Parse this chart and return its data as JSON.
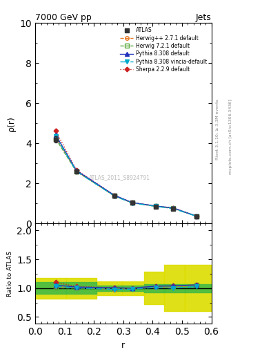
{
  "title_left": "7000 GeV pp",
  "title_right": "Jets",
  "ylabel_main": "ρ(r)",
  "ylabel_ratio": "Ratio to ATLAS",
  "xlabel": "r",
  "right_label_top": "Rivet 3.1.10; ≥ 3.3M events",
  "right_label_bottom": "mcplots.cern.ch [arXiv:1306.3436]",
  "watermark": "ATLAS_2011_S8924791",
  "x_data": [
    0.07,
    0.14,
    0.27,
    0.33,
    0.41,
    0.47,
    0.55
  ],
  "atlas_y": [
    4.2,
    2.6,
    1.4,
    1.05,
    0.85,
    0.75,
    0.35
  ],
  "atlas_yerr": [
    0.15,
    0.1,
    0.07,
    0.05,
    0.04,
    0.04,
    0.025
  ],
  "herwig1_y": [
    4.32,
    2.62,
    1.37,
    1.04,
    0.86,
    0.76,
    0.37
  ],
  "herwig2_y": [
    4.22,
    2.6,
    1.39,
    1.04,
    0.87,
    0.77,
    0.37
  ],
  "pythia_y": [
    4.42,
    2.65,
    1.41,
    1.05,
    0.88,
    0.78,
    0.37
  ],
  "vincia_y": [
    4.35,
    2.61,
    1.37,
    1.03,
    0.86,
    0.75,
    0.36
  ],
  "sherpa_y": [
    4.62,
    2.68,
    1.41,
    1.05,
    0.88,
    0.78,
    0.37
  ],
  "ylim_main": [
    0,
    10
  ],
  "ylim_ratio": [
    0.38,
    2.12
  ],
  "xlim": [
    0.0,
    0.6
  ],
  "yticks_main": [
    0,
    2,
    4,
    6,
    8,
    10
  ],
  "yticks_ratio": [
    0.5,
    1.0,
    1.5,
    2.0
  ],
  "color_atlas": "#333333",
  "color_herwig1": "#E87820",
  "color_herwig2": "#5DAA3F",
  "color_pythia": "#2233BB",
  "color_vincia": "#00AACC",
  "color_sherpa": "#CC2222",
  "color_green_band": "#44BB44",
  "color_yellow_band": "#DDDD00",
  "band_edges": [
    0.0,
    0.105,
    0.21,
    0.295,
    0.37,
    0.44,
    0.51,
    0.6
  ],
  "yellow_band_lo": [
    0.82,
    0.82,
    0.88,
    0.88,
    0.72,
    0.6,
    0.6
  ],
  "yellow_band_hi": [
    1.18,
    1.18,
    1.12,
    1.12,
    1.28,
    1.4,
    1.4
  ],
  "green_band_lo": [
    0.9,
    0.9,
    0.95,
    0.95,
    0.93,
    0.93,
    0.93
  ],
  "green_band_hi": [
    1.1,
    1.1,
    1.05,
    1.05,
    1.07,
    1.07,
    1.07
  ]
}
